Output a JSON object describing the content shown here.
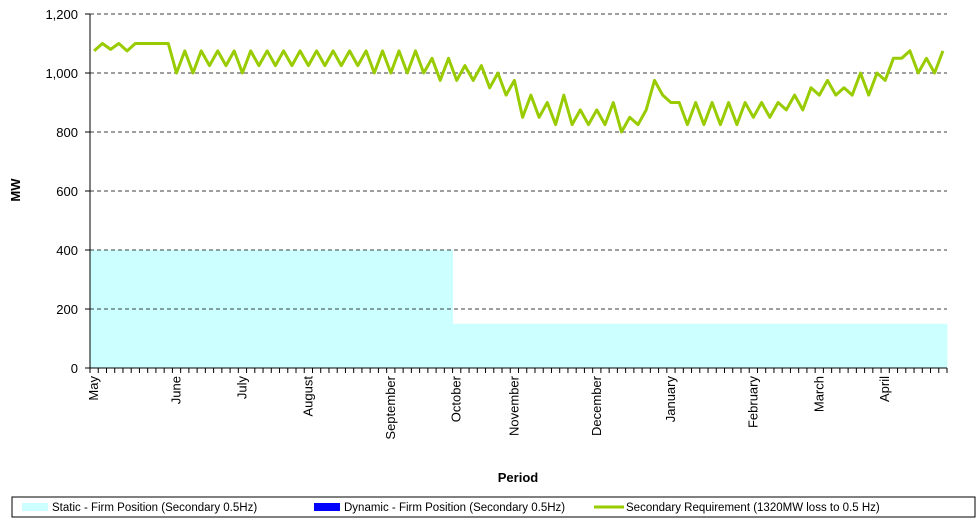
{
  "chart_data": {
    "type": "area-line",
    "x_label": "Period",
    "y_label": "MW",
    "categories": [
      "May",
      null,
      null,
      null,
      null,
      null,
      null,
      null,
      null,
      null,
      "June",
      null,
      null,
      null,
      null,
      null,
      null,
      null,
      "July",
      null,
      null,
      null,
      null,
      null,
      null,
      null,
      "August",
      null,
      null,
      null,
      null,
      null,
      null,
      null,
      null,
      null,
      "September",
      null,
      null,
      null,
      null,
      null,
      null,
      null,
      "October",
      null,
      null,
      null,
      null,
      null,
      null,
      "November",
      null,
      null,
      null,
      null,
      null,
      null,
      null,
      null,
      null,
      "December",
      null,
      null,
      null,
      null,
      null,
      null,
      null,
      null,
      "January",
      null,
      null,
      null,
      null,
      null,
      null,
      null,
      null,
      null,
      "February",
      null,
      null,
      null,
      null,
      null,
      null,
      null,
      "March",
      null,
      null,
      null,
      null,
      null,
      null,
      null,
      "April",
      null,
      null,
      null,
      null,
      null,
      null,
      null
    ],
    "series": [
      {
        "name": "Static - Firm Position (Secondary 0.5Hz)",
        "color": "#ccffff",
        "kind": "area",
        "values": [
          400,
          400,
          400,
          400,
          400,
          400,
          400,
          400,
          400,
          400,
          400,
          400,
          400,
          400,
          400,
          400,
          400,
          400,
          400,
          400,
          400,
          400,
          400,
          400,
          400,
          400,
          400,
          400,
          400,
          400,
          400,
          400,
          400,
          400,
          400,
          400,
          400,
          400,
          400,
          400,
          400,
          400,
          400,
          400,
          150,
          150,
          150,
          150,
          150,
          150,
          150,
          150,
          150,
          150,
          150,
          150,
          150,
          150,
          150,
          150,
          150,
          150,
          150,
          150,
          150,
          150,
          150,
          150,
          150,
          150,
          150,
          150,
          150,
          150,
          150,
          150,
          150,
          150,
          150,
          150,
          150,
          150,
          150,
          150,
          150,
          150,
          150,
          150,
          150,
          150,
          150,
          150,
          150,
          150,
          150,
          150,
          150,
          150,
          150,
          150,
          150,
          150,
          150,
          150
        ]
      },
      {
        "name": "Dynamic - Firm Position (Secondary 0.5Hz)",
        "color": "#0000ff",
        "kind": "area",
        "values": [
          0,
          0,
          0,
          0,
          0,
          0,
          0,
          0,
          0,
          0,
          0,
          0,
          0,
          0,
          0,
          0,
          0,
          0,
          0,
          0,
          0,
          0,
          0,
          0,
          0,
          0,
          0,
          0,
          0,
          0,
          0,
          0,
          0,
          0,
          0,
          0,
          0,
          0,
          0,
          0,
          0,
          0,
          0,
          0,
          0,
          0,
          0,
          0,
          0,
          0,
          0,
          0,
          0,
          0,
          0,
          0,
          0,
          0,
          0,
          0,
          0,
          0,
          0,
          0,
          0,
          0,
          0,
          0,
          0,
          0,
          0,
          0,
          0,
          0,
          0,
          0,
          0,
          0,
          0,
          0,
          0,
          0,
          0,
          0,
          0,
          0,
          0,
          0,
          0,
          0,
          0,
          0,
          0,
          0,
          0,
          0,
          0,
          0,
          0,
          0,
          0,
          0,
          0,
          0
        ]
      },
      {
        "name": "Secondary Requirement (1320MW loss to 0.5 Hz)",
        "color": "#99cc00",
        "kind": "line",
        "values": [
          1075,
          1100,
          1080,
          1100,
          1075,
          1100,
          1100,
          1100,
          1100,
          1100,
          1000,
          1075,
          1000,
          1075,
          1025,
          1075,
          1025,
          1075,
          1000,
          1075,
          1025,
          1075,
          1025,
          1075,
          1025,
          1075,
          1025,
          1075,
          1025,
          1075,
          1025,
          1075,
          1025,
          1075,
          1000,
          1075,
          1000,
          1075,
          1000,
          1075,
          1000,
          1050,
          975,
          1050,
          975,
          1025,
          975,
          1025,
          950,
          1000,
          925,
          975,
          850,
          925,
          850,
          900,
          825,
          925,
          825,
          875,
          825,
          875,
          825,
          900,
          800,
          850,
          825,
          875,
          975,
          925,
          900,
          900,
          825,
          900,
          825,
          900,
          825,
          900,
          825,
          900,
          850,
          900,
          850,
          900,
          875,
          925,
          875,
          950,
          925,
          975,
          925,
          950,
          925,
          1000,
          925,
          1000,
          975,
          1050,
          1050,
          1075,
          1000,
          1050,
          1000,
          1075
        ]
      }
    ],
    "ylim": [
      0,
      1200
    ],
    "yticks": [
      0,
      200,
      400,
      600,
      800,
      {
        "value": 1000,
        "label": "1,000"
      },
      {
        "value": 1200,
        "label": "1,200"
      }
    ],
    "grid": true,
    "legend": "bottom"
  }
}
